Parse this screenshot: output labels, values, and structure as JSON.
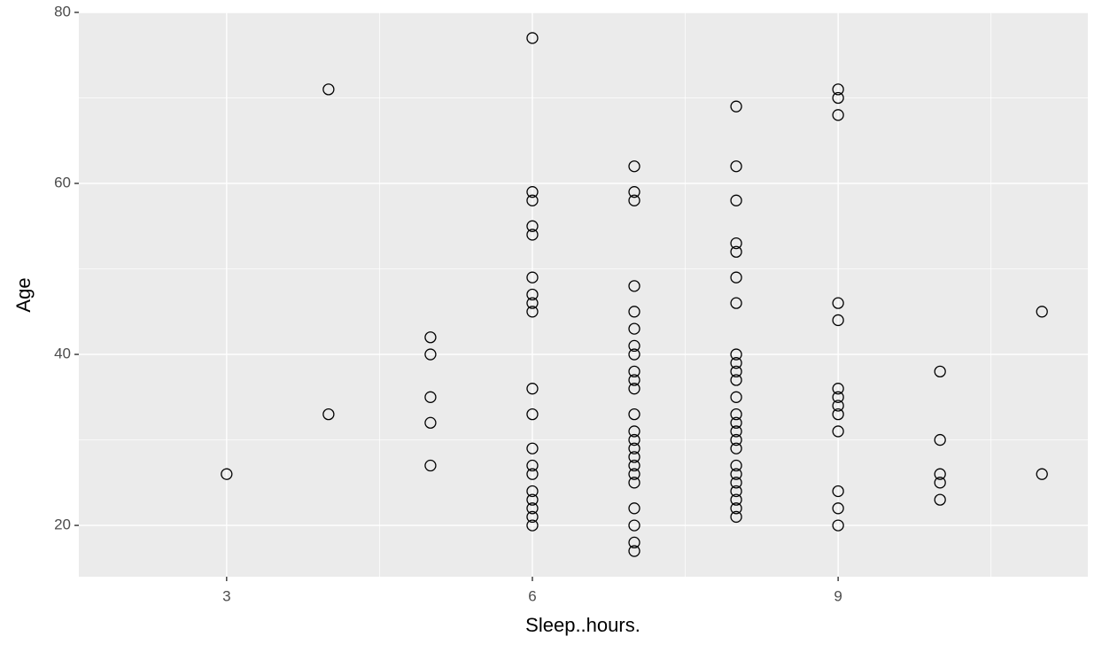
{
  "chart_data": {
    "type": "scatter",
    "x_label": "Sleep..hours.",
    "y_label": "Age",
    "x": [
      3,
      4,
      4,
      5,
      5,
      5,
      5,
      5,
      6,
      6,
      6,
      6,
      6,
      6,
      6,
      6,
      6,
      6,
      6,
      6,
      6,
      6,
      6,
      6,
      6,
      6,
      6,
      7,
      7,
      7,
      7,
      7,
      7,
      7,
      7,
      7,
      7,
      7,
      7,
      7,
      7,
      7,
      7,
      7,
      7,
      7,
      7,
      7,
      7,
      7,
      8,
      8,
      8,
      8,
      8,
      8,
      8,
      8,
      8,
      8,
      8,
      8,
      8,
      8,
      8,
      8,
      8,
      8,
      8,
      8,
      8,
      8,
      8,
      8,
      9,
      9,
      9,
      9,
      9,
      9,
      9,
      9,
      9,
      9,
      9,
      9,
      9,
      10,
      10,
      10,
      10,
      10,
      11,
      11
    ],
    "values": [
      26,
      71,
      33,
      42,
      40,
      35,
      32,
      27,
      77,
      59,
      58,
      55,
      54,
      49,
      47,
      46,
      45,
      36,
      33,
      29,
      27,
      26,
      24,
      23,
      22,
      21,
      20,
      62,
      59,
      58,
      48,
      45,
      43,
      41,
      40,
      38,
      37,
      36,
      33,
      31,
      30,
      29,
      28,
      27,
      26,
      25,
      22,
      20,
      18,
      17,
      69,
      62,
      58,
      53,
      52,
      49,
      46,
      40,
      39,
      38,
      37,
      35,
      33,
      32,
      31,
      30,
      29,
      27,
      26,
      25,
      24,
      23,
      22,
      21,
      71,
      70,
      68,
      46,
      44,
      36,
      35,
      34,
      33,
      31,
      24,
      22,
      20,
      38,
      30,
      26,
      25,
      23,
      45,
      26
    ],
    "xlim": [
      1.55,
      11.45
    ],
    "ylim": [
      14,
      80
    ],
    "xticks": [
      3,
      6,
      9
    ],
    "yticks": [
      20,
      40,
      60,
      80
    ],
    "grid": true
  }
}
